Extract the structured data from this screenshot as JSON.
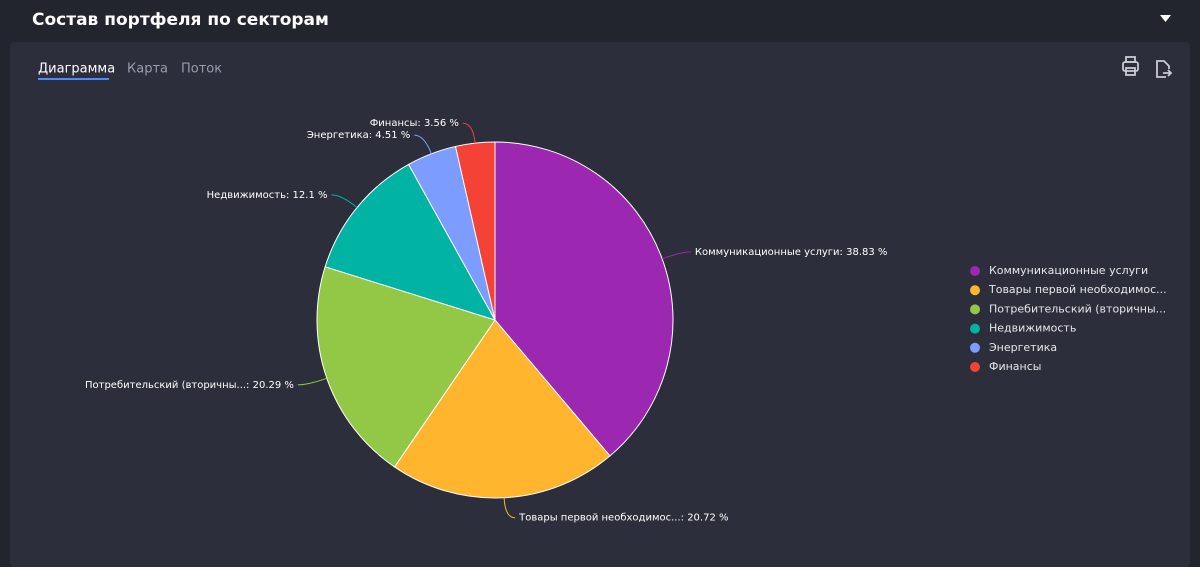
{
  "header": {
    "title": "Состав портфеля по секторам"
  },
  "tabs": [
    "Диаграмма",
    "Карта",
    "Поток"
  ],
  "chart_data": {
    "type": "pie",
    "categories": [
      "Коммуникационные услуги",
      "Товары первой необходимос...",
      "Потребительский (вторичны...",
      "Недвижимость",
      "Энергетика",
      "Финансы"
    ],
    "values": [
      38.83,
      20.72,
      20.29,
      12.1,
      4.51,
      3.56
    ],
    "value_labels": [
      "Коммуникационные услуги: 38.83 %",
      "Товары первой необходимос...: 20.72 %",
      "Потребительский (вторичны...: 20.29 %",
      "Недвижимость: 12.1 %",
      "Энергетика: 4.51 %",
      "Финансы: 3.56 %"
    ],
    "colors": [
      "#9c27b0",
      "#ffb52e",
      "#92c846",
      "#00b3a3",
      "#7c9cff",
      "#f44336"
    ],
    "legend": "right"
  }
}
